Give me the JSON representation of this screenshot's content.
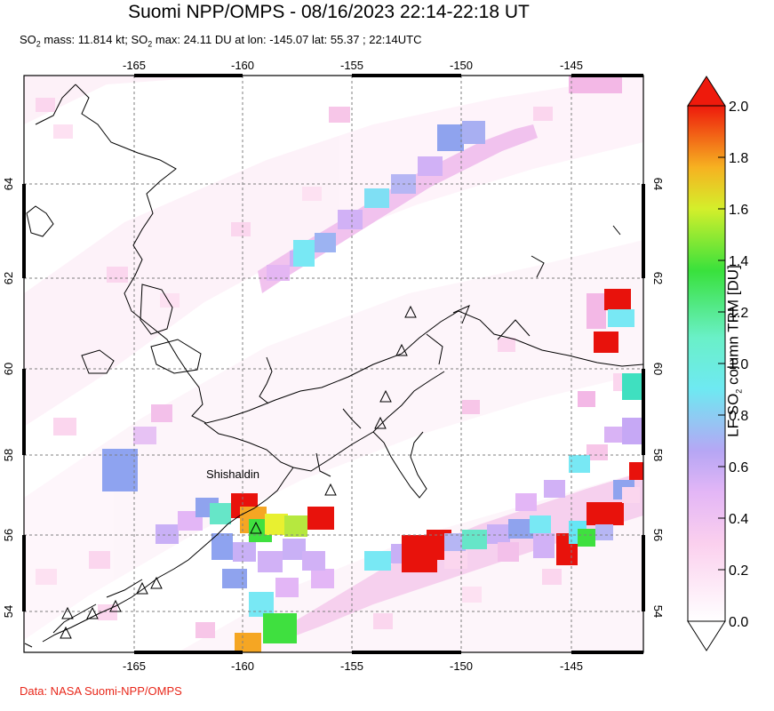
{
  "title": "Suomi NPP/OMPS - 08/16/2023 22:14-22:18 UT",
  "subtitle": {
    "p1": "SO",
    "p1sub": "2",
    "p2": " mass: 11.814 kt; SO",
    "p2sub": "2",
    "p3": " max: 24.11 DU at lon: -145.07 lat: 55.37 ; 22:14UTC"
  },
  "credit": "Data: NASA Suomi-NPP/OMPS",
  "map": {
    "lon_ticks": [
      "-165",
      "-160",
      "-155",
      "-150",
      "-145"
    ],
    "lat_ticks": [
      "54",
      "56",
      "58",
      "60",
      "62",
      "64"
    ],
    "volcano_label": "Shishaldin",
    "colors": {
      "land_outline": "#000000",
      "grid": "#7f7f7f",
      "pixel_pink_light": "#fde6f3",
      "pixel_pink": "#f7c6e8",
      "pixel_lavender": "#d9b3f5",
      "pixel_blue": "#8ea3f0",
      "pixel_cyan": "#66e6f5",
      "pixel_green": "#3fe03f",
      "pixel_yellow": "#e8f030",
      "pixel_orange": "#f5a623",
      "pixel_red": "#e8120c"
    }
  },
  "colorbar": {
    "title_p1": "LF SO",
    "title_sub": "2",
    "title_p2": " column TRM [DU]",
    "ticks": [
      "0.0",
      "0.2",
      "0.4",
      "0.6",
      "0.8",
      "1.0",
      "1.2",
      "1.4",
      "1.6",
      "1.8",
      "2.0"
    ],
    "range": [
      0.0,
      2.0
    ]
  }
}
